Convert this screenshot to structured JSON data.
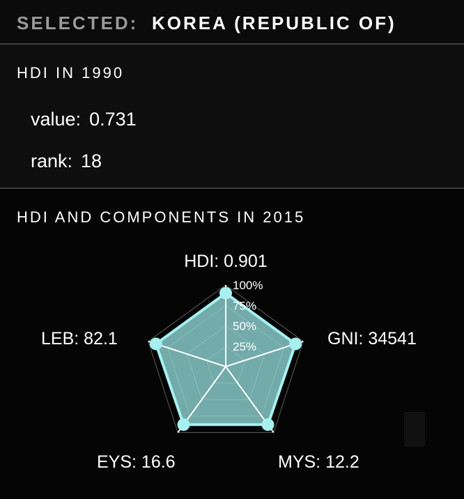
{
  "header": {
    "selected_label": "SELECTED:",
    "country": "KOREA (REPUBLIC OF)"
  },
  "hdi_1990": {
    "title": "HDI IN  1990",
    "value_label": "value:",
    "value": "0.731",
    "rank_label": "rank:",
    "rank": "18"
  },
  "components": {
    "title": "HDI AND COMPONENTS IN 2015"
  },
  "chart_data": {
    "type": "radar",
    "axes": [
      {
        "label": "HDI: 0.901",
        "name": "HDI",
        "raw": 0.901,
        "scaled_pct": 90
      },
      {
        "label": "GNI: 34541",
        "name": "GNI",
        "raw": 34541,
        "scaled_pct": 90
      },
      {
        "label": "MYS: 12.2",
        "name": "MYS",
        "raw": 12.2,
        "scaled_pct": 88
      },
      {
        "label": "EYS: 16.6",
        "name": "EYS",
        "raw": 16.6,
        "scaled_pct": 88
      },
      {
        "label": "LEB: 82.1",
        "name": "LEB",
        "raw": 82.1,
        "scaled_pct": 90
      }
    ],
    "rings_pct": [
      25,
      50,
      75,
      100
    ],
    "ring_labels": [
      "25%",
      "50%",
      "75%",
      "100%"
    ],
    "colors": {
      "fill": "#8fd3d3",
      "stroke": "#a6f0f0",
      "point": "#a6f0f0",
      "grid": "#ffffff"
    }
  }
}
